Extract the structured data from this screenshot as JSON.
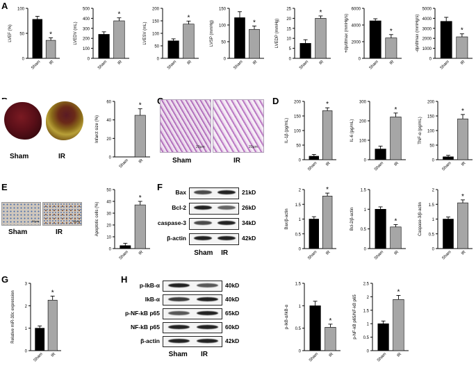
{
  "colors": {
    "sham": "#000000",
    "ir": "#a6a6a6"
  },
  "panel_labels": {
    "A": "A",
    "B": "B",
    "C": "C",
    "D": "D",
    "E": "E",
    "F": "F",
    "G": "G",
    "H": "H"
  },
  "photos": {
    "heart_sham": "Sham",
    "heart_ir": "IR",
    "he_sham": "Sham",
    "he_ir": "IR",
    "tunel_sham": "Sham",
    "tunel_ir": "IR",
    "scale_he_1": "20μm",
    "scale_he_2": "20μm",
    "scale_tunel_1": "50μm",
    "scale_tunel_2": "50μm"
  },
  "blot_f": {
    "rows": [
      {
        "name": "Bax",
        "kd": "21kD",
        "sham": 0.7,
        "ir": 1.0
      },
      {
        "name": "Bcl-2",
        "kd": "26kD",
        "sham": 1.0,
        "ir": 0.5
      },
      {
        "name": "caspase-3",
        "kd": "34kD",
        "sham": 0.7,
        "ir": 1.0
      },
      {
        "name": "β-actin",
        "kd": "42kD",
        "sham": 1.0,
        "ir": 1.0
      }
    ],
    "lanes": [
      "Sham",
      "IR"
    ]
  },
  "blot_h": {
    "rows": [
      {
        "name": "p-IkB-α",
        "kd": "40kD",
        "sham": 1.0,
        "ir": 0.6
      },
      {
        "name": "IkB-α",
        "kd": "40kD",
        "sham": 0.8,
        "ir": 1.0
      },
      {
        "name": "p-NF-kB p65",
        "kd": "65kD",
        "sham": 0.6,
        "ir": 1.0
      },
      {
        "name": "NF-kB p65",
        "kd": "60kD",
        "sham": 1.0,
        "ir": 1.0
      },
      {
        "name": "β-actin",
        "kd": "42kD",
        "sham": 1.0,
        "ir": 1.0
      }
    ],
    "lanes": [
      "Sham",
      "IR"
    ]
  },
  "chart_data": [
    {
      "id": "lvef",
      "type": "bar",
      "categories": [
        "Sham",
        "IR"
      ],
      "values": [
        78,
        36
      ],
      "errors": [
        6,
        5
      ],
      "ylabel": "LVEF (%)",
      "ylim": [
        0,
        100
      ],
      "ticks": [
        0,
        50,
        100
      ],
      "sig": "*"
    },
    {
      "id": "lvedv",
      "type": "bar",
      "categories": [
        "Sham",
        "IR"
      ],
      "values": [
        240,
        375
      ],
      "errors": [
        25,
        30
      ],
      "ylabel": "LVEDV (mL)",
      "ylim": [
        0,
        500
      ],
      "ticks": [
        0,
        100,
        200,
        300,
        400,
        500
      ],
      "sig": "*"
    },
    {
      "id": "lvesv",
      "type": "bar",
      "categories": [
        "Sham",
        "IR"
      ],
      "values": [
        70,
        137
      ],
      "errors": [
        8,
        12
      ],
      "ylabel": "LVESV (mL)",
      "ylim": [
        0,
        200
      ],
      "ticks": [
        0,
        50,
        100,
        150,
        200
      ],
      "sig": "*"
    },
    {
      "id": "lvsp",
      "type": "bar",
      "categories": [
        "Sham",
        "IR"
      ],
      "values": [
        122,
        87
      ],
      "errors": [
        18,
        10
      ],
      "ylabel": "LVSP (mmHg)",
      "ylim": [
        0,
        150
      ],
      "ticks": [
        0,
        50,
        100,
        150
      ],
      "sig": "*"
    },
    {
      "id": "lvedp",
      "type": "bar",
      "categories": [
        "Sham",
        "IR"
      ],
      "values": [
        7.5,
        20
      ],
      "errors": [
        1.8,
        1.2
      ],
      "ylabel": "LVEDP (mmHg)",
      "ylim": [
        0,
        25
      ],
      "ticks": [
        0,
        5,
        10,
        15,
        20,
        25
      ],
      "sig": "*"
    },
    {
      "id": "dpdtmax",
      "type": "bar",
      "categories": [
        "Sham",
        "IR"
      ],
      "values": [
        4500,
        2450
      ],
      "errors": [
        250,
        400
      ],
      "ylabel": "+dp/dtmax (mmHg/s)",
      "ylim": [
        0,
        6000
      ],
      "ticks": [
        0,
        2000,
        4000,
        6000
      ],
      "sig": "*"
    },
    {
      "id": "dpdtmin",
      "type": "bar",
      "categories": [
        "Sham",
        "IR"
      ],
      "values": [
        3700,
        2150
      ],
      "errors": [
        400,
        300
      ],
      "ylabel": "-dp/dtmax (mmHg/s)",
      "ylim": [
        0,
        5000
      ],
      "ticks": [
        0,
        1000,
        2000,
        3000,
        4000,
        5000
      ],
      "sig": "*"
    },
    {
      "id": "infarct",
      "type": "bar",
      "categories": [
        "Sham",
        "IR"
      ],
      "values": [
        0,
        45
      ],
      "errors": [
        0,
        7
      ],
      "ylabel": "Infarct size (%)",
      "ylim": [
        0,
        60
      ],
      "ticks": [
        0,
        20,
        40,
        60
      ],
      "sig": "*"
    },
    {
      "id": "il1b",
      "type": "bar",
      "categories": [
        "Sham",
        "IR"
      ],
      "values": [
        12,
        168
      ],
      "errors": [
        6,
        10
      ],
      "ylabel": "IL-1β (pg/mL)",
      "ylim": [
        0,
        200
      ],
      "ticks": [
        0,
        50,
        100,
        150,
        200
      ],
      "sig": "*"
    },
    {
      "id": "il6",
      "type": "bar",
      "categories": [
        "Sham",
        "IR"
      ],
      "values": [
        55,
        220
      ],
      "errors": [
        15,
        20
      ],
      "ylabel": "IL-6 (pg/mL)",
      "ylim": [
        0,
        300
      ],
      "ticks": [
        0,
        100,
        200,
        300
      ],
      "sig": "*"
    },
    {
      "id": "tnfa",
      "type": "bar",
      "categories": [
        "Sham",
        "IR"
      ],
      "values": [
        10,
        140
      ],
      "errors": [
        5,
        15
      ],
      "ylabel": "TNF-α (pg/mL)",
      "ylim": [
        0,
        200
      ],
      "ticks": [
        0,
        50,
        100,
        150,
        200
      ],
      "sig": "*"
    },
    {
      "id": "apoptotic",
      "type": "bar",
      "categories": [
        "Sham",
        "IR"
      ],
      "values": [
        2.5,
        37
      ],
      "errors": [
        2,
        3
      ],
      "ylabel": "Apoptotic cells (%)",
      "ylim": [
        0,
        50
      ],
      "ticks": [
        0,
        10,
        20,
        30,
        40,
        50
      ],
      "sig": "*"
    },
    {
      "id": "bax",
      "type": "bar",
      "categories": [
        "Sham",
        "IR"
      ],
      "values": [
        1.0,
        1.78
      ],
      "errors": [
        0.08,
        0.1
      ],
      "ylabel": "Bax/β-actin",
      "ylim": [
        0,
        2.0
      ],
      "ticks": [
        0,
        0.5,
        1.0,
        1.5,
        2.0
      ],
      "sig": "*"
    },
    {
      "id": "bcl2",
      "type": "bar",
      "categories": [
        "Sham",
        "IR"
      ],
      "values": [
        1.0,
        0.55
      ],
      "errors": [
        0.06,
        0.06
      ],
      "ylabel": "Bcl-2/β-actin",
      "ylim": [
        0,
        1.5
      ],
      "ticks": [
        0,
        0.5,
        1.0,
        1.5
      ],
      "sig": "*"
    },
    {
      "id": "casp3",
      "type": "bar",
      "categories": [
        "Sham",
        "IR"
      ],
      "values": [
        1.0,
        1.55
      ],
      "errors": [
        0.07,
        0.1
      ],
      "ylabel": "Caspase-3/β-actin",
      "ylim": [
        0,
        2.0
      ],
      "ticks": [
        0,
        0.5,
        1.0,
        1.5,
        2.0
      ],
      "sig": "*"
    },
    {
      "id": "mir30c",
      "type": "bar",
      "categories": [
        "Sham",
        "IR"
      ],
      "values": [
        1.0,
        2.25
      ],
      "errors": [
        0.1,
        0.18
      ],
      "ylabel": "Relative miR-30c expression",
      "ylim": [
        0,
        3
      ],
      "ticks": [
        0,
        1,
        2,
        3
      ],
      "sig": "*"
    },
    {
      "id": "pikba",
      "type": "bar",
      "categories": [
        "Sham",
        "IR"
      ],
      "values": [
        1.0,
        0.52
      ],
      "errors": [
        0.1,
        0.07
      ],
      "ylabel": "p-IkB-α/IkB-α",
      "ylim": [
        0,
        1.5
      ],
      "ticks": [
        0,
        0.5,
        1.0,
        1.5
      ],
      "sig": "*"
    },
    {
      "id": "pnfkb",
      "type": "bar",
      "categories": [
        "Sham",
        "IR"
      ],
      "values": [
        1.0,
        1.9
      ],
      "errors": [
        0.1,
        0.15
      ],
      "ylabel": "p-NF-kB p65/NF-kB p65",
      "ylim": [
        0,
        2.5
      ],
      "ticks": [
        0,
        0.5,
        1.0,
        1.5,
        2.0,
        2.5
      ],
      "sig": "*"
    }
  ]
}
